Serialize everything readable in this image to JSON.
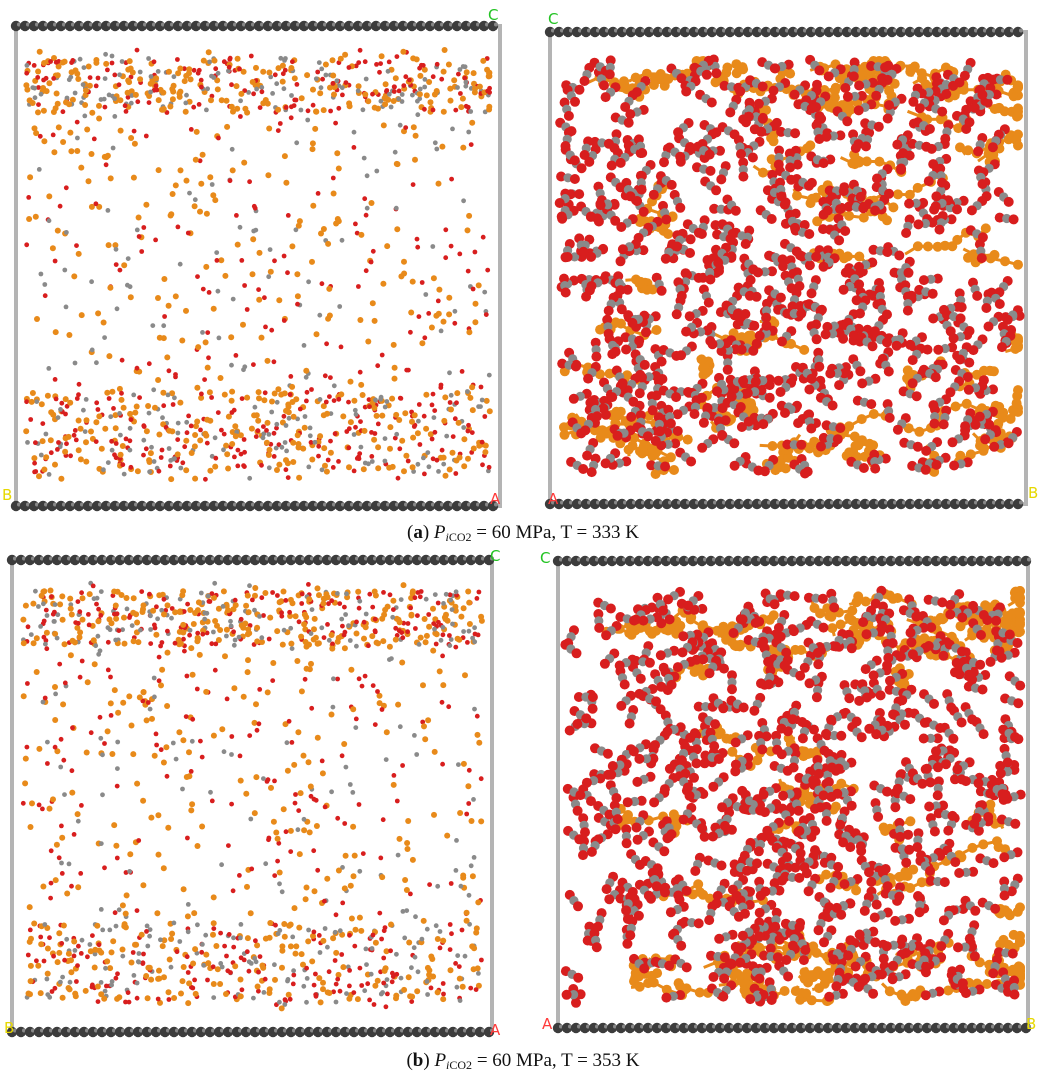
{
  "colors": {
    "background": "#ffffff",
    "oxygen": "#d81e1e",
    "carbon": "#8a8a8a",
    "hydrocarbon": "#e88a1a",
    "graphite_wall": "#3c3c3c",
    "box_edge": "#b4b4b4",
    "axis_a": "#ff3b3b",
    "axis_b": "#e6d800",
    "axis_c": "#22c322"
  },
  "axis_labels": {
    "a": "A",
    "b": "B",
    "c": "C"
  },
  "panels": [
    {
      "id": "a-left",
      "style": "points",
      "density": "sparse"
    },
    {
      "id": "a-right",
      "style": "ball-and-stick",
      "density": "dense"
    },
    {
      "id": "b-left",
      "style": "points",
      "density": "sparse"
    },
    {
      "id": "b-right",
      "style": "ball-and-stick",
      "density": "dense"
    }
  ],
  "captions": {
    "a": {
      "tag": "a",
      "p": "P",
      "sub_i": "i",
      "sub_co2": "CO2",
      "rest": " = 60 MPa, T = 333 K"
    },
    "b": {
      "tag": "b",
      "p": "P",
      "sub_i": "i",
      "sub_co2": "CO2",
      "rest": " = 60 MPa, T = 353 K"
    }
  }
}
